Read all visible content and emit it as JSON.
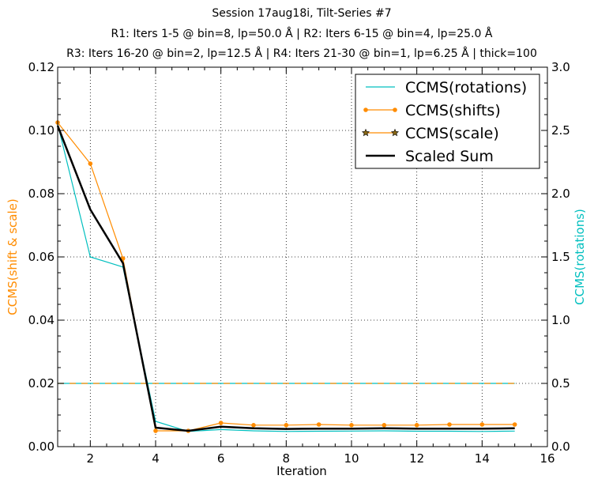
{
  "chart_data": {
    "type": "line",
    "title_lines": [
      "Session 17aug18i, Tilt-Series #7",
      "R1: Iters 1-5 @ bin=8, lp=50.0 Å | R2: Iters 6-15 @ bin=4, lp=25.0 Å",
      "R3: Iters 16-20 @ bin=2, lp=12.5 Å | R4: Iters 21-30 @ bin=1, lp=6.25 Å | thick=100"
    ],
    "xlabel": "Iteration",
    "ylabel_left": "CCMS(shift & scale)",
    "ylabel_right": "CCMS(rotations)",
    "xlim": [
      1,
      16
    ],
    "ylim_left": [
      0,
      0.12
    ],
    "ylim_right": [
      0,
      3.0
    ],
    "x_ticks": [
      2,
      4,
      6,
      8,
      10,
      12,
      14,
      16
    ],
    "y_left_ticks": [
      "0.00",
      "0.02",
      "0.04",
      "0.06",
      "0.08",
      "0.10",
      "0.12"
    ],
    "y_right_ticks": [
      "0.0",
      "0.5",
      "1.0",
      "1.5",
      "2.0",
      "2.5",
      "3.0"
    ],
    "grid": true,
    "legend_position": "top-right",
    "colors": {
      "rotations": "#00bfbf",
      "shifts": "#ff8c00",
      "scale": "#ff8c00",
      "scale_marker_fill": "#8b6914",
      "scaled_sum": "#000000",
      "left_axis_label": "#ff8c00",
      "right_axis_label": "#00bfbf"
    },
    "x": [
      1,
      2,
      3,
      4,
      5,
      6,
      7,
      8,
      9,
      10,
      11,
      12,
      13,
      14,
      15
    ],
    "series": [
      {
        "name": "CCMS(rotations)",
        "axis": "right",
        "style": "line",
        "values": [
          2.55,
          1.5,
          1.42,
          0.2,
          0.12,
          0.135,
          0.125,
          0.12,
          0.122,
          0.123,
          0.125,
          0.122,
          0.122,
          0.12,
          0.123
        ]
      },
      {
        "name": "CCMS(shifts)",
        "axis": "left",
        "style": "line-dot",
        "values": [
          0.1025,
          0.0895,
          0.0595,
          0.005,
          0.005,
          0.0075,
          0.0068,
          0.0068,
          0.007,
          0.0068,
          0.0068,
          0.0068,
          0.007,
          0.007,
          0.007
        ]
      },
      {
        "name": "CCMS(scale)",
        "axis": "left",
        "style": "line-star",
        "values": [
          0.02,
          0.02,
          0.02,
          0.02,
          0.02,
          0.02,
          0.02,
          0.02,
          0.02,
          0.02,
          0.02,
          0.02,
          0.02,
          0.02,
          0.02
        ]
      },
      {
        "name": "Scaled Sum",
        "axis": "left",
        "style": "thick-line",
        "values": [
          0.1015,
          0.075,
          0.058,
          0.006,
          0.005,
          0.0063,
          0.0058,
          0.0056,
          0.0057,
          0.0057,
          0.0058,
          0.0057,
          0.0057,
          0.0057,
          0.0058
        ]
      }
    ]
  }
}
